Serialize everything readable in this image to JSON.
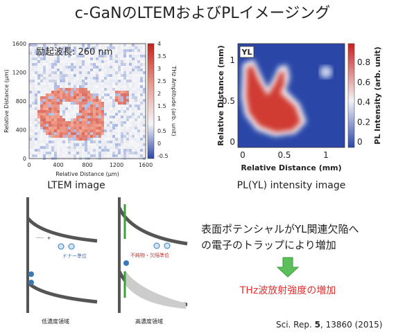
{
  "title": "c-GaNのLTEMおよびPLイメージング",
  "ltem": {
    "annotation": "励起波長: 260 nm",
    "x_label": "Relative Distance (μm)",
    "y_label": "Relative Distance (μm)",
    "x_ticks": [
      "0",
      "400",
      "800",
      "1200",
      "1600"
    ],
    "y_ticks": [
      "0",
      "400",
      "800",
      "1200",
      "1600"
    ],
    "colorbar_label": "THz Amplitude (arb. unit)",
    "colorbar_ticks": [
      "-0.5",
      "0",
      "0.5",
      "1",
      "1.5",
      "2",
      "2.5",
      "3",
      "3.5",
      "4"
    ],
    "caption": "LTEM image"
  },
  "pl": {
    "tag": "YL",
    "x_label": "Relative Distance (mm)",
    "y_label": "Relative Distance (mm)",
    "x_ticks": [
      "0",
      "0.5",
      "1"
    ],
    "y_ticks": [
      "0",
      "0.5",
      "1"
    ],
    "colorbar_label": "PL Intensity (arb. unit)",
    "colorbar_ticks": [
      "0",
      "0.2",
      "0.4",
      "0.6",
      "0.8"
    ],
    "caption": "PL(YL) intensity image"
  },
  "band_diagrams": {
    "donor_level": "ドナー準位",
    "defect_level": "不純物・欠陥準位",
    "low_label": "低濃度領域",
    "high_label": "高濃度領域"
  },
  "explanation": {
    "lines": [
      "表面ポテンシャルがYL関連欠陥へ",
      "の電子のトラップにより増加"
    ],
    "result": "THz波放射強度の増加"
  },
  "citation": {
    "journal": "Sci. Rep. ",
    "volume": "5",
    "pages": ", 13860 (2015)"
  }
}
